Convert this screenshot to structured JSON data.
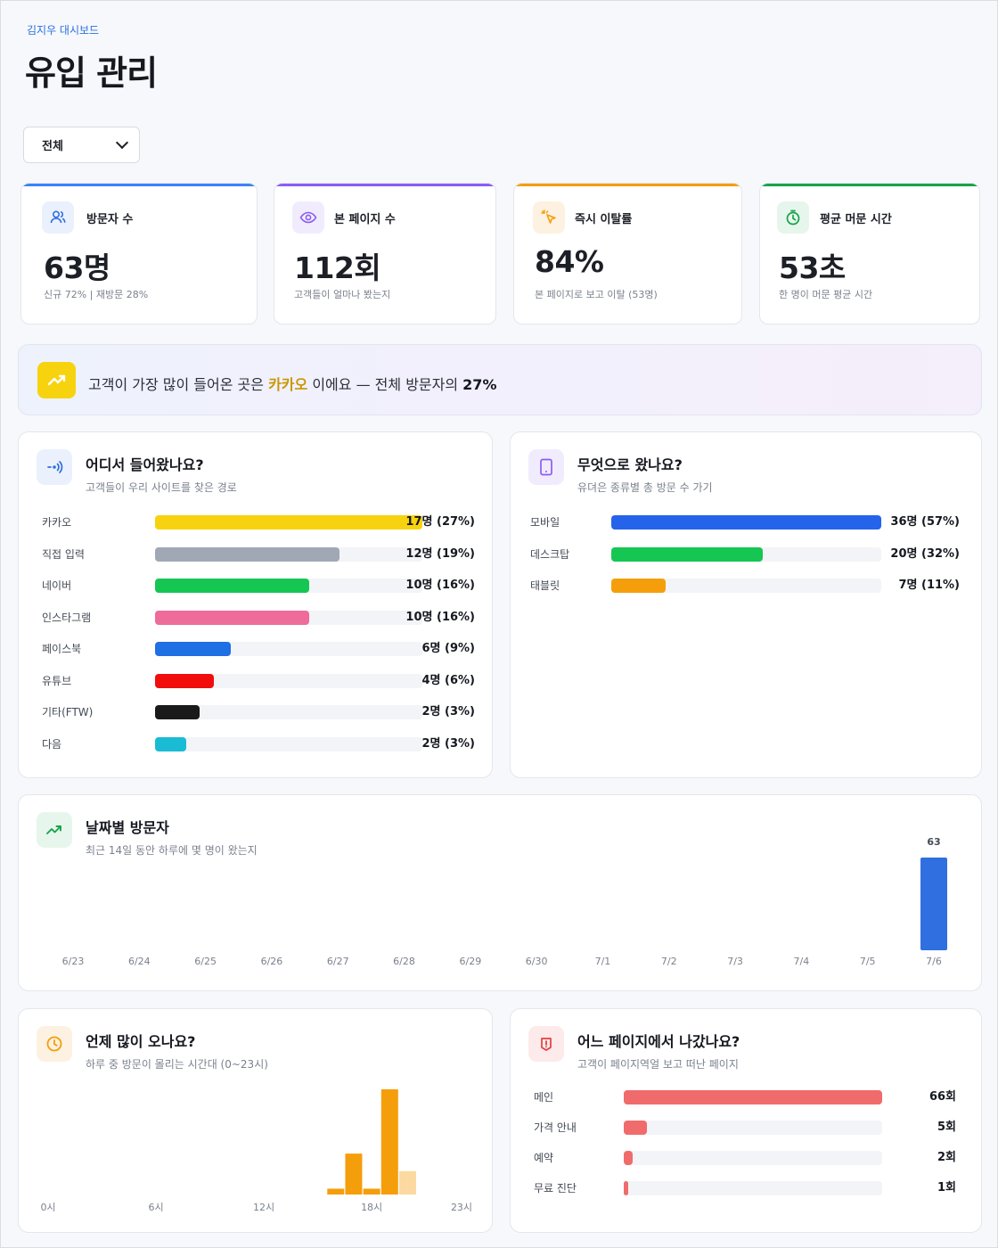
{
  "header": {
    "breadcrumb": "김지우 대시보드",
    "title": "유입 관리"
  },
  "filter": {
    "selected": "전체"
  },
  "kpis": [
    {
      "label": "방문자 수",
      "value": "63명",
      "sub": "신규 72% | 재방문 28%",
      "accent": "#3b82f6",
      "icon": "users-icon"
    },
    {
      "label": "본 페이지 수",
      "value": "112회",
      "sub": "고객들이 얼마나 봤는지",
      "accent": "#8b5cf6",
      "icon": "eye-icon"
    },
    {
      "label": "즉시 이탈률",
      "value": "84%",
      "sub": "본 페이지로 보고 이탈 (53명)",
      "accent": "#f59e0b",
      "icon": "pointer-icon"
    },
    {
      "label": "평균 머문 시간",
      "value": "53초",
      "sub": "한 명이 머문 평균 시간",
      "accent": "#16a34a",
      "icon": "timer-icon"
    }
  ],
  "banner": {
    "prefix": "고객이 가장 많이 들어온 곳은 ",
    "highlight": "카카오",
    "middle": " 이에요 — 전체 방문자의 ",
    "percent": "27%"
  },
  "sources": {
    "title": "어디서 들어왔나요?",
    "subtitle": "고객들이 우리 사이트를 찾은 경로",
    "items": [
      {
        "label": "카카오",
        "value": "17명 (27%)",
        "ratio": 1.0,
        "color": "#f7d30f"
      },
      {
        "label": "직접 입력",
        "value": "12명 (19%)",
        "ratio": 0.69,
        "color": "#a0a8b6"
      },
      {
        "label": "네이버",
        "value": "10명 (16%)",
        "ratio": 0.575,
        "color": "#16c653"
      },
      {
        "label": "인스타그램",
        "value": "10명 (16%)",
        "ratio": 0.575,
        "color": "#ee6b9a"
      },
      {
        "label": "페이스북",
        "value": "6명 (9%)",
        "ratio": 0.285,
        "color": "#1f6fe5"
      },
      {
        "label": "유튜브",
        "value": "4명 (6%)",
        "ratio": 0.22,
        "color": "#f20d0d"
      },
      {
        "label": "기타(FTW)",
        "value": "2명 (3%)",
        "ratio": 0.165,
        "color": "#1a1a1a"
      },
      {
        "label": "다음",
        "value": "2명 (3%)",
        "ratio": 0.115,
        "color": "#19bcd4"
      }
    ]
  },
  "devices": {
    "title": "무엇으로 왔나요?",
    "subtitle": "유뎌은 종류별 총 방문 수 가기",
    "items": [
      {
        "label": "모바일",
        "value": "36명 (57%)",
        "ratio": 1.0,
        "color": "#2563eb"
      },
      {
        "label": "데스크탑",
        "value": "20명 (32%)",
        "ratio": 0.56,
        "color": "#16c653"
      },
      {
        "label": "태블릿",
        "value": "7명 (11%)",
        "ratio": 0.2,
        "color": "#f59e0b"
      }
    ]
  },
  "daily": {
    "title": "날짜별 방문자",
    "subtitle": "최근 14일 동안 하루에 몇 명이 왔는지",
    "chart_data": {
      "type": "bar",
      "categories": [
        "6/23",
        "6/24",
        "6/25",
        "6/26",
        "6/27",
        "6/28",
        "6/29",
        "6/30",
        "7/1",
        "7/2",
        "7/3",
        "7/4",
        "7/5",
        "7/6"
      ],
      "values": [
        0,
        0,
        0,
        0,
        0,
        0,
        0,
        0,
        0,
        0,
        0,
        0,
        0,
        63
      ],
      "data_labels": [
        "",
        "",
        "",
        "",
        "",
        "",
        "",
        "",
        "",
        "",
        "",
        "",
        "",
        "63"
      ],
      "color": "#2f6fe0",
      "ylim": [
        0,
        63
      ]
    }
  },
  "hourly": {
    "title": "언제 많이 오나요?",
    "subtitle": "하루 중 방문이 몰리는 시간대 (0~23시)",
    "chart_data": {
      "type": "bar",
      "x": [
        0,
        1,
        2,
        3,
        4,
        5,
        6,
        7,
        8,
        9,
        10,
        11,
        12,
        13,
        14,
        15,
        16,
        17,
        18,
        19,
        20,
        21,
        22,
        23
      ],
      "values": [
        0,
        0,
        0,
        0,
        0,
        0,
        0,
        0,
        0,
        0,
        0,
        0,
        0,
        0,
        0,
        0,
        2,
        14,
        2,
        36,
        8,
        0,
        0,
        0
      ],
      "tick_labels": [
        "0시",
        "6시",
        "12시",
        "18시",
        "23시"
      ],
      "tick_positions": [
        0,
        6,
        12,
        18,
        23
      ],
      "color": "#f59e0b",
      "highlight_color": "#fcd9a0",
      "ylim": [
        0,
        36
      ]
    }
  },
  "exits": {
    "title": "어느 페이지에서 나갔나요?",
    "subtitle": "고객이 페이지역얼 보고 떠난 페이지",
    "items": [
      {
        "label": "메인",
        "value": "66회",
        "ratio": 1.0,
        "color": "#f06b6b"
      },
      {
        "label": "가격 안내",
        "value": "5회",
        "ratio": 0.09,
        "color": "#f06b6b"
      },
      {
        "label": "예약",
        "value": "2회",
        "ratio": 0.035,
        "color": "#f06b6b"
      },
      {
        "label": "무료 진단",
        "value": "1회",
        "ratio": 0.018,
        "color": "#f06b6b"
      }
    ]
  }
}
